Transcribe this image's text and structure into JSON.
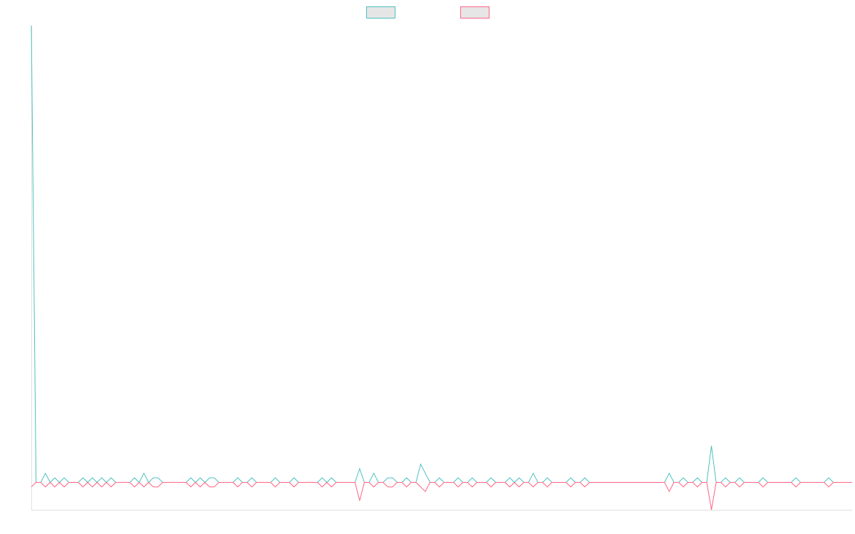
{
  "chart_data": {
    "type": "line",
    "title": "",
    "xlabel": "",
    "ylabel": "",
    "grid": false,
    "legend": "top-center",
    "x": [
      0,
      1,
      2,
      3,
      4,
      5,
      6,
      7,
      8,
      9,
      10,
      11,
      12,
      13,
      14,
      15,
      16,
      17,
      18,
      19,
      20,
      21,
      22,
      23,
      24,
      25,
      26,
      27,
      28,
      29,
      30,
      31,
      32,
      33,
      34,
      35,
      36,
      37,
      38,
      39,
      40,
      41,
      42,
      43,
      44,
      45,
      46,
      47,
      48,
      49,
      50,
      51,
      52,
      53,
      54,
      55,
      56,
      57,
      58,
      59,
      60,
      61,
      62,
      63,
      64,
      65,
      66,
      67,
      68,
      69,
      70,
      71,
      72,
      73,
      74,
      75,
      76,
      77,
      78,
      79,
      80,
      81,
      82,
      83,
      84,
      85,
      86,
      87,
      88,
      89,
      90,
      91,
      92,
      93,
      94,
      95,
      96,
      97,
      98,
      99,
      100,
      101,
      102,
      103,
      104,
      105,
      106,
      107,
      108,
      109,
      110,
      111,
      112,
      113,
      114,
      115,
      116,
      117,
      118,
      119,
      120,
      121,
      122,
      123,
      124,
      125,
      126,
      127,
      128,
      129,
      130,
      131,
      132,
      133,
      134,
      135,
      136,
      137,
      138,
      139,
      140,
      141,
      142,
      143,
      144,
      145,
      146,
      147,
      148,
      149,
      150,
      151,
      152,
      153,
      154,
      155,
      156,
      157,
      158,
      159,
      160,
      161,
      162,
      163,
      164,
      165,
      166,
      167,
      168,
      169,
      170,
      171,
      172,
      173,
      174,
      175
    ],
    "xlim": [
      0,
      175
    ],
    "ylim": [
      -6,
      100
    ],
    "series": [
      {
        "name": "",
        "color": "#4bc0c0",
        "values": [
          100,
          0,
          0,
          2,
          0,
          1,
          0,
          1,
          0,
          0,
          0,
          1,
          0,
          1,
          0,
          1,
          0,
          1,
          0,
          0,
          0,
          0,
          1,
          0,
          2,
          0,
          1,
          1,
          0,
          0,
          0,
          0,
          0,
          0,
          1,
          0,
          1,
          0,
          1,
          1,
          0,
          0,
          0,
          0,
          1,
          0,
          0,
          1,
          0,
          0,
          0,
          0,
          1,
          0,
          0,
          0,
          1,
          0,
          0,
          0,
          0,
          0,
          1,
          0,
          1,
          0,
          0,
          0,
          0,
          0,
          3,
          0,
          0,
          2,
          0,
          0,
          1,
          1,
          0,
          0,
          1,
          0,
          0,
          4,
          2,
          0,
          0,
          1,
          0,
          0,
          0,
          1,
          0,
          0,
          1,
          0,
          0,
          0,
          1,
          0,
          0,
          0,
          1,
          0,
          1,
          0,
          0,
          2,
          0,
          0,
          1,
          0,
          0,
          0,
          0,
          1,
          0,
          0,
          1,
          0,
          0,
          0,
          0,
          0,
          0,
          0,
          0,
          0,
          0,
          0,
          0,
          0,
          0,
          0,
          0,
          0,
          2,
          0,
          0,
          1,
          0,
          0,
          1,
          0,
          0,
          8,
          0,
          0,
          1,
          0,
          0,
          1,
          0,
          0,
          0,
          0,
          1,
          0,
          0,
          0,
          0,
          0,
          0,
          1,
          0,
          0,
          0,
          0,
          0,
          0,
          1,
          0,
          0,
          0,
          0,
          0
        ]
      },
      {
        "name": "",
        "color": "#ff6384",
        "values": [
          -1,
          0,
          0,
          -1,
          0,
          -1,
          0,
          -1,
          0,
          0,
          0,
          -1,
          0,
          -1,
          0,
          -1,
          0,
          -1,
          0,
          0,
          0,
          0,
          -1,
          0,
          -1,
          0,
          -1,
          -1,
          0,
          0,
          0,
          0,
          0,
          0,
          -1,
          0,
          -1,
          0,
          -1,
          -1,
          0,
          0,
          0,
          0,
          -1,
          0,
          0,
          -1,
          0,
          0,
          0,
          0,
          -1,
          0,
          0,
          0,
          -1,
          0,
          0,
          0,
          0,
          0,
          -1,
          0,
          -1,
          0,
          0,
          0,
          0,
          0,
          -4,
          0,
          0,
          -1,
          0,
          0,
          -1,
          -1,
          0,
          0,
          -1,
          0,
          0,
          -1,
          -2,
          0,
          0,
          -1,
          0,
          0,
          0,
          -1,
          0,
          0,
          -1,
          0,
          0,
          0,
          -1,
          0,
          0,
          0,
          -1,
          0,
          -1,
          0,
          0,
          -1,
          0,
          0,
          -1,
          0,
          0,
          0,
          0,
          -1,
          0,
          0,
          -1,
          0,
          0,
          0,
          0,
          0,
          0,
          0,
          0,
          0,
          0,
          0,
          0,
          0,
          0,
          0,
          0,
          0,
          -2,
          0,
          0,
          -1,
          0,
          0,
          -1,
          0,
          0,
          -6,
          0,
          0,
          -1,
          0,
          0,
          -1,
          0,
          0,
          0,
          0,
          -1,
          0,
          0,
          0,
          0,
          0,
          0,
          -1,
          0,
          0,
          0,
          0,
          0,
          0,
          -1,
          0,
          0,
          0,
          0,
          0
        ]
      }
    ]
  }
}
